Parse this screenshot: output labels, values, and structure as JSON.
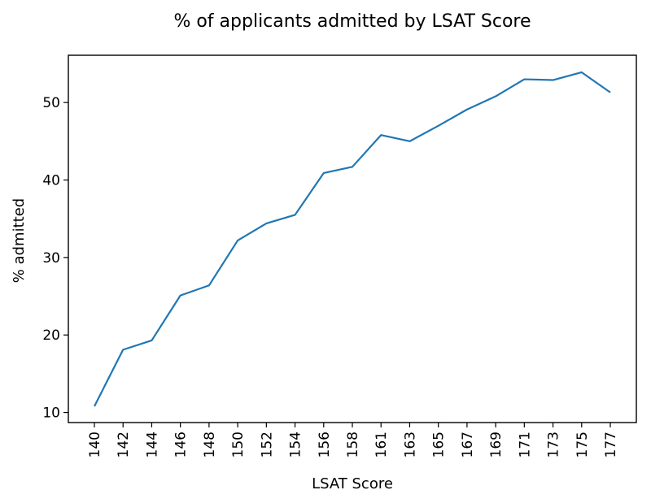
{
  "chart_data": {
    "type": "line",
    "title": "% of applicants admitted by LSAT Score",
    "xlabel": "LSAT Score",
    "ylabel": "% admitted",
    "categories": [
      "140",
      "142",
      "144",
      "146",
      "148",
      "150",
      "152",
      "154",
      "156",
      "158",
      "161",
      "163",
      "165",
      "167",
      "169",
      "171",
      "173",
      "175",
      "177"
    ],
    "series": [
      {
        "values": [
          10.8,
          18.1,
          19.3,
          25.1,
          26.4,
          32.2,
          34.4,
          35.5,
          40.9,
          41.7,
          45.8,
          45.0,
          47.0,
          49.1,
          50.8,
          53.0,
          52.9,
          53.9,
          51.3
        ]
      }
    ],
    "ylim": [
      8.7,
      56.1
    ],
    "yticks": [
      10,
      20,
      30,
      40,
      50
    ],
    "grid": false,
    "line_color": "#1f77b4"
  }
}
